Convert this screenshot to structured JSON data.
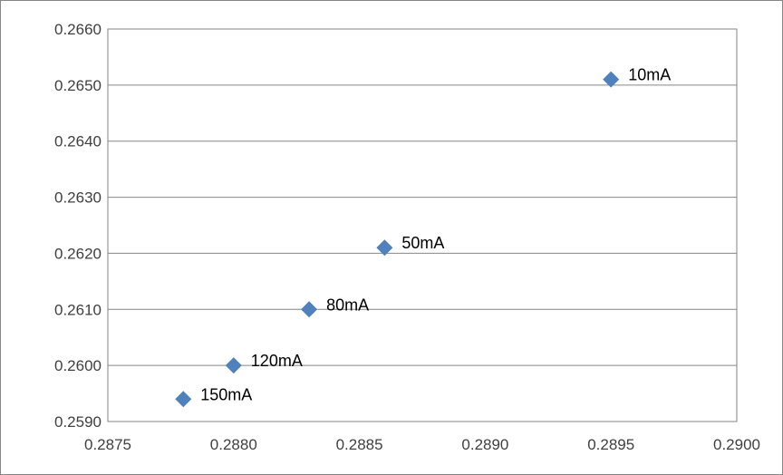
{
  "chart_data": {
    "type": "scatter",
    "title": "",
    "xlabel": "",
    "ylabel": "",
    "xlim": [
      0.2875,
      0.29
    ],
    "ylim": [
      0.259,
      0.266
    ],
    "x_ticks": [
      "0.2875",
      "0.2880",
      "0.2885",
      "0.2890",
      "0.2895",
      "0.2900"
    ],
    "y_ticks": [
      "0.2590",
      "0.2600",
      "0.2610",
      "0.2620",
      "0.2630",
      "0.2640",
      "0.2650",
      "0.2660"
    ],
    "x_tick_values": [
      0.2875,
      0.288,
      0.2885,
      0.289,
      0.2895,
      0.29
    ],
    "y_tick_values": [
      0.259,
      0.26,
      0.261,
      0.262,
      0.263,
      0.264,
      0.265,
      0.266
    ],
    "grid": "horizontal",
    "legend": "none",
    "marker": "diamond",
    "marker_color": "#4f81bd",
    "gridline_color": "#868686",
    "points": [
      {
        "x": 0.2895,
        "y": 0.2651,
        "label": "10mA"
      },
      {
        "x": 0.2886,
        "y": 0.2621,
        "label": "50mA"
      },
      {
        "x": 0.2883,
        "y": 0.261,
        "label": "80mA"
      },
      {
        "x": 0.288,
        "y": 0.26,
        "label": "120mA"
      },
      {
        "x": 0.2878,
        "y": 0.2594,
        "label": "150mA"
      }
    ]
  }
}
